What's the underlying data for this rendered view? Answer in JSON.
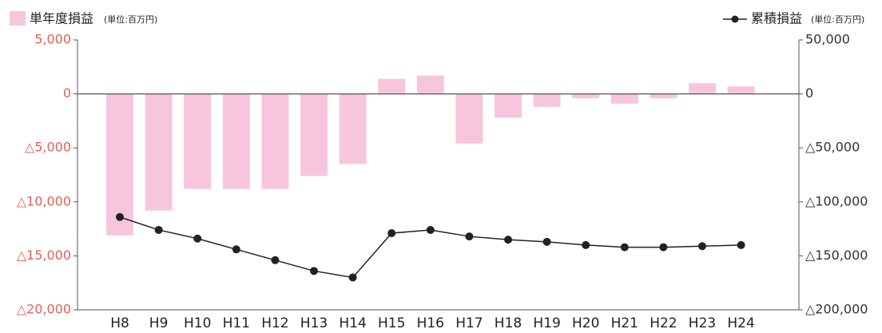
{
  "chart_data": {
    "type": "bar_line",
    "unit_label": "(単位:百万円)",
    "categories": [
      "H8",
      "H9",
      "H10",
      "H11",
      "H12",
      "H13",
      "H14",
      "H15",
      "H16",
      "H17",
      "H18",
      "H19",
      "H20",
      "H21",
      "H22",
      "H23",
      "H24"
    ],
    "series": [
      {
        "name": "単年度損益",
        "type": "bar",
        "color": "#f7c6dc",
        "values": [
          -13100,
          -10800,
          -8800,
          -8800,
          -8800,
          -7600,
          -6500,
          1400,
          1700,
          -4600,
          -2200,
          -1200,
          -400,
          -900,
          -400,
          1000,
          700
        ]
      },
      {
        "name": "累積損益",
        "type": "line",
        "axis": "y2",
        "color": "#222222",
        "values": [
          -114000,
          -126000,
          -134000,
          -144000,
          -154000,
          -164000,
          -170000,
          -129000,
          -126000,
          -132000,
          -135000,
          -137000,
          -140000,
          -142000,
          -142000,
          -141000,
          -140000
        ]
      }
    ],
    "ylim": [
      -20000,
      5000
    ],
    "yticks": [
      {
        "value": 5000,
        "label": "5,000"
      },
      0,
      {
        "value": -5000,
        "label": "△5,000"
      },
      {
        "value": -10000,
        "label": "△10,000"
      },
      {
        "value": -15000,
        "label": "△15,000"
      },
      {
        "value": -20000,
        "label": "△20,000"
      }
    ],
    "y2lim": [
      -200000,
      50000
    ],
    "y2ticks": [
      {
        "value": 50000,
        "label": "50,000"
      },
      0,
      {
        "value": -50000,
        "label": "△50,000"
      },
      {
        "value": -100000,
        "label": "△100,000"
      },
      {
        "value": -150000,
        "label": "△150,000"
      },
      {
        "value": -200000,
        "label": "△200,000"
      }
    ]
  }
}
